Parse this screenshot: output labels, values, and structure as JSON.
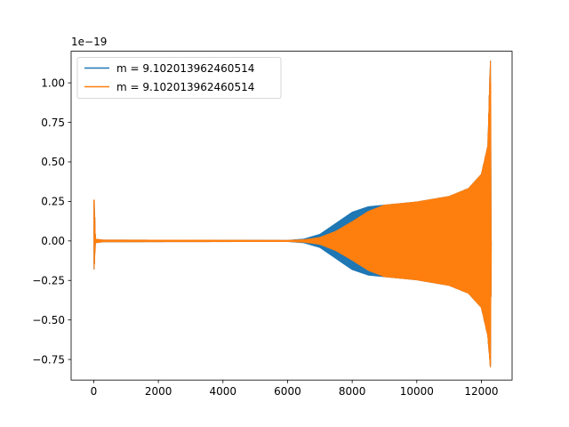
{
  "chart_data": {
    "type": "line",
    "title": "",
    "xlabel": "",
    "ylabel": "",
    "y_offset_text": "1e−19",
    "xlim": [
      -700,
      12950
    ],
    "ylim": [
      -0.88,
      1.2
    ],
    "xticks": [
      0,
      2000,
      4000,
      6000,
      8000,
      10000,
      12000
    ],
    "xtick_labels": [
      "0",
      "2000",
      "4000",
      "6000",
      "8000",
      "10000",
      "12000"
    ],
    "yticks": [
      -0.75,
      -0.5,
      -0.25,
      0.0,
      0.25,
      0.5,
      0.75,
      1.0
    ],
    "ytick_labels": [
      "−0.75",
      "−0.50",
      "−0.25",
      "0.00",
      "0.25",
      "0.50",
      "0.75",
      "1.00"
    ],
    "grid": false,
    "legend_position": "upper-left",
    "series": [
      {
        "name": "m = 9.102013962460514",
        "color": "#1f77b4",
        "envelope_upper": [
          [
            10,
            0.26
          ],
          [
            50,
            0.01
          ],
          [
            300,
            0.004
          ],
          [
            6000,
            0.002
          ],
          [
            6500,
            0.01
          ],
          [
            7000,
            0.04
          ],
          [
            7500,
            0.11
          ],
          [
            8000,
            0.18
          ],
          [
            8500,
            0.215
          ],
          [
            9000,
            0.225
          ],
          [
            10000,
            0.245
          ],
          [
            11000,
            0.28
          ],
          [
            11600,
            0.33
          ],
          [
            12000,
            0.42
          ],
          [
            12200,
            0.6
          ],
          [
            12280,
            1.14
          ],
          [
            12300,
            0.0
          ]
        ],
        "envelope_lower": [
          [
            10,
            -0.18
          ],
          [
            50,
            -0.01
          ],
          [
            300,
            -0.004
          ],
          [
            6000,
            -0.002
          ],
          [
            6500,
            -0.01
          ],
          [
            7000,
            -0.04
          ],
          [
            7500,
            -0.11
          ],
          [
            8000,
            -0.18
          ],
          [
            8500,
            -0.215
          ],
          [
            9000,
            -0.225
          ],
          [
            10000,
            -0.245
          ],
          [
            11000,
            -0.28
          ],
          [
            11600,
            -0.33
          ],
          [
            12000,
            -0.42
          ],
          [
            12200,
            -0.6
          ],
          [
            12280,
            -0.8
          ],
          [
            12300,
            0.0
          ]
        ]
      },
      {
        "name": "m = 9.102013962460514",
        "color": "#ff7f0e",
        "envelope_upper": [
          [
            10,
            0.26
          ],
          [
            50,
            0.01
          ],
          [
            300,
            0.004
          ],
          [
            6000,
            0.002
          ],
          [
            6500,
            0.006
          ],
          [
            7000,
            0.02
          ],
          [
            7500,
            0.06
          ],
          [
            8000,
            0.12
          ],
          [
            8500,
            0.185
          ],
          [
            9000,
            0.225
          ],
          [
            10000,
            0.245
          ],
          [
            11000,
            0.28
          ],
          [
            11600,
            0.33
          ],
          [
            12000,
            0.42
          ],
          [
            12200,
            0.6
          ],
          [
            12280,
            1.14
          ],
          [
            12300,
            0.0
          ]
        ],
        "envelope_lower": [
          [
            10,
            -0.18
          ],
          [
            50,
            -0.01
          ],
          [
            300,
            -0.004
          ],
          [
            6000,
            -0.002
          ],
          [
            6500,
            -0.006
          ],
          [
            7000,
            -0.02
          ],
          [
            7500,
            -0.06
          ],
          [
            8000,
            -0.12
          ],
          [
            8500,
            -0.185
          ],
          [
            9000,
            -0.225
          ],
          [
            10000,
            -0.245
          ],
          [
            11000,
            -0.28
          ],
          [
            11600,
            -0.33
          ],
          [
            12000,
            -0.42
          ],
          [
            12200,
            -0.6
          ],
          [
            12280,
            -0.8
          ],
          [
            12300,
            0.0
          ]
        ]
      }
    ]
  }
}
